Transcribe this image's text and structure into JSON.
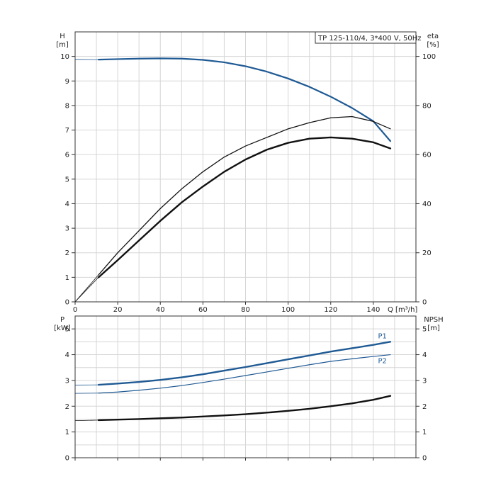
{
  "chart_data": [
    {
      "type": "line",
      "title": "TP 125-110/4, 3*400 V, 50Hz",
      "xlabel": "Q [m³/h]",
      "xlim": [
        0,
        160
      ],
      "xticks": [
        0,
        20,
        40,
        60,
        80,
        100,
        120,
        140
      ],
      "ylabel_left": [
        "H",
        "[m]"
      ],
      "ylim_left": [
        0,
        11
      ],
      "yticks_left": [
        0,
        1,
        2,
        3,
        4,
        5,
        6,
        7,
        8,
        9,
        10
      ],
      "ylabel_right": [
        "eta",
        "[%]"
      ],
      "ylim_right": [
        0,
        110
      ],
      "yticks_right": [
        0,
        20,
        40,
        60,
        80,
        100
      ],
      "grid": true,
      "series": [
        {
          "name": "",
          "axis": "left",
          "color": "#1f5a94",
          "x": [
            0,
            11,
            20,
            30,
            40,
            50,
            60,
            70,
            80,
            90,
            100,
            110,
            120,
            130,
            140,
            148
          ],
          "y": [
            9.88,
            9.87,
            9.89,
            9.91,
            9.92,
            9.91,
            9.86,
            9.76,
            9.6,
            9.38,
            9.1,
            8.76,
            8.36,
            7.9,
            7.36,
            6.55
          ]
        },
        {
          "name": "",
          "axis": "right",
          "color": "#111111",
          "x": [
            0,
            11,
            20,
            30,
            40,
            50,
            60,
            70,
            80,
            90,
            100,
            110,
            120,
            130,
            140,
            148
          ],
          "y": [
            0,
            11,
            20,
            29,
            38,
            46,
            53,
            59,
            63.5,
            67,
            70.5,
            73,
            75,
            75.5,
            73.5,
            70.5
          ]
        },
        {
          "name": "",
          "axis": "right",
          "color": "#111111",
          "x": [
            0,
            11,
            20,
            30,
            40,
            50,
            60,
            70,
            80,
            90,
            100,
            110,
            120,
            130,
            140,
            148
          ],
          "y": [
            0,
            10,
            17,
            25,
            33,
            40.5,
            47,
            53,
            58,
            62,
            64.8,
            66.5,
            67,
            66.5,
            65,
            62.5
          ]
        }
      ]
    },
    {
      "type": "line",
      "title": "",
      "xlabel": "",
      "xlim": [
        0,
        160
      ],
      "ylabel_left": [
        "P",
        "[kW]"
      ],
      "ylim_left": [
        0,
        5.5
      ],
      "yticks_left": [
        0,
        1,
        2,
        3,
        4,
        5
      ],
      "ylabel_right": [
        "NPSH",
        "[m]"
      ],
      "ylim_right": [
        0,
        5.5
      ],
      "yticks_right": [
        0,
        1,
        2,
        3,
        4,
        5
      ],
      "grid": true,
      "series": [
        {
          "name": "P1",
          "axis": "left",
          "color": "#1f5a94",
          "x": [
            0,
            11,
            20,
            30,
            40,
            50,
            60,
            70,
            80,
            90,
            100,
            110,
            120,
            130,
            140,
            148
          ],
          "y": [
            2.82,
            2.83,
            2.88,
            2.94,
            3.02,
            3.12,
            3.24,
            3.38,
            3.52,
            3.67,
            3.82,
            3.97,
            4.12,
            4.25,
            4.38,
            4.5
          ]
        },
        {
          "name": "P2",
          "axis": "left",
          "color": "#1f5a94",
          "x": [
            0,
            11,
            20,
            30,
            40,
            50,
            60,
            70,
            80,
            90,
            100,
            110,
            120,
            130,
            140,
            148
          ],
          "y": [
            2.5,
            2.51,
            2.55,
            2.62,
            2.7,
            2.8,
            2.92,
            3.05,
            3.19,
            3.33,
            3.47,
            3.61,
            3.74,
            3.84,
            3.93,
            4.0
          ]
        },
        {
          "name": "",
          "axis": "right",
          "color": "#111111",
          "x": [
            0,
            11,
            20,
            30,
            40,
            50,
            60,
            70,
            80,
            90,
            100,
            110,
            120,
            130,
            140,
            148
          ],
          "y": [
            1.44,
            1.46,
            1.48,
            1.5,
            1.53,
            1.56,
            1.6,
            1.64,
            1.69,
            1.75,
            1.82,
            1.9,
            2.0,
            2.11,
            2.25,
            2.4
          ]
        }
      ]
    }
  ]
}
